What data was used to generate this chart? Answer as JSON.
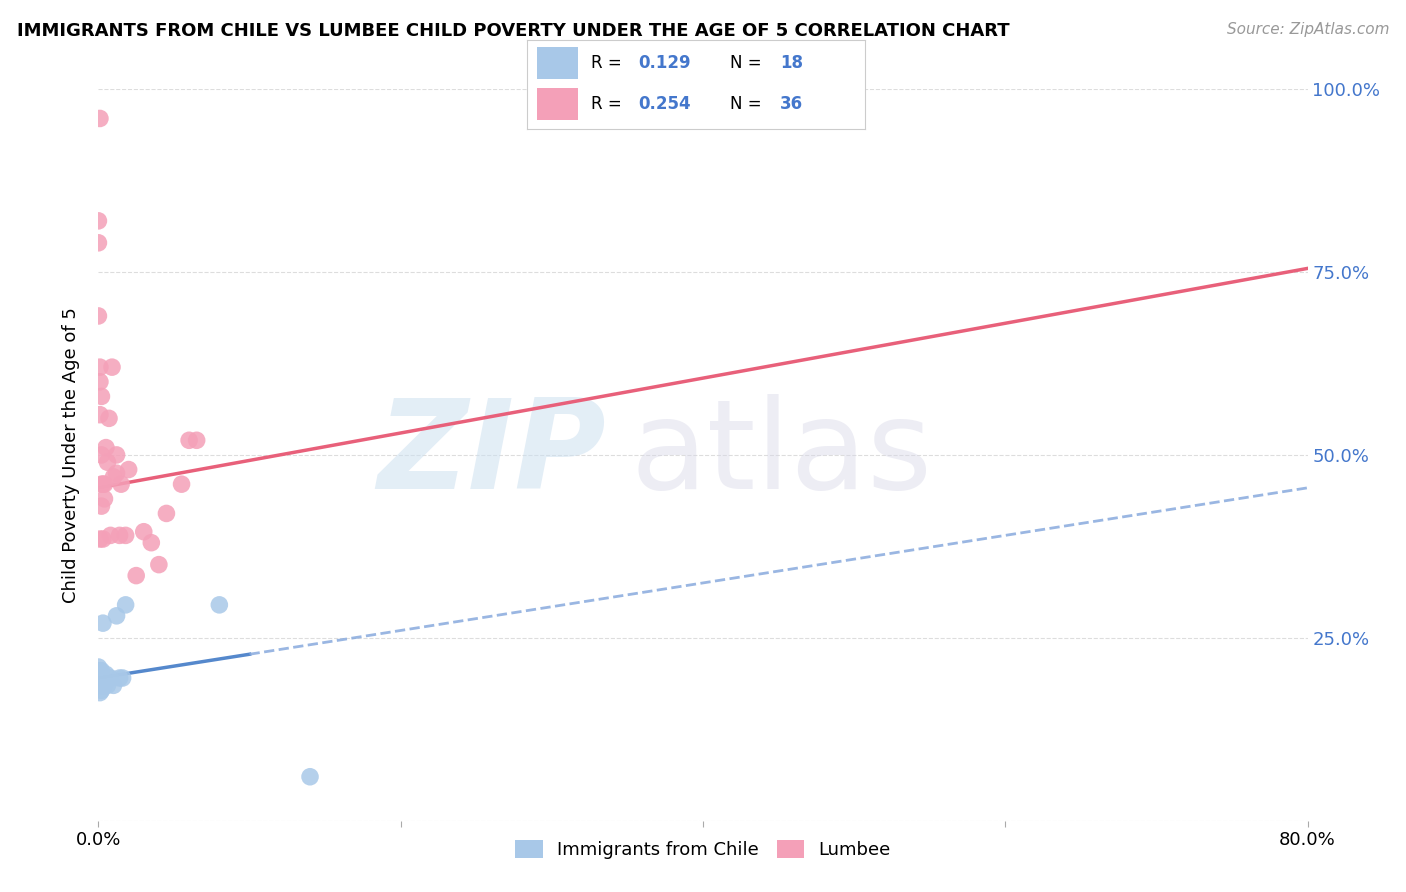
{
  "title": "IMMIGRANTS FROM CHILE VS LUMBEE CHILD POVERTY UNDER THE AGE OF 5 CORRELATION CHART",
  "source": "Source: ZipAtlas.com",
  "ylabel": "Child Poverty Under the Age of 5",
  "xlim": [
    0,
    0.8
  ],
  "ylim": [
    0,
    1.0
  ],
  "color_chile": "#a8c8e8",
  "color_lumbee": "#f4a0b8",
  "color_blue_text": "#4477cc",
  "color_pink_line": "#e8607a",
  "color_blue_line": "#5588cc",
  "color_dashed": "#88aadd",
  "watermark_zip_color": "#cce0f0",
  "watermark_atlas_color": "#d8d8e8",
  "background_color": "#ffffff",
  "grid_color": "#dddddd",
  "chile_x": [
    0.0,
    0.0,
    0.0,
    0.001,
    0.001,
    0.001,
    0.001,
    0.001,
    0.002,
    0.002,
    0.002,
    0.002,
    0.002,
    0.003,
    0.003,
    0.004,
    0.005,
    0.006,
    0.008,
    0.01,
    0.012,
    0.014,
    0.016,
    0.018,
    0.08,
    0.14
  ],
  "chile_y": [
    0.185,
    0.195,
    0.21,
    0.175,
    0.185,
    0.19,
    0.2,
    0.205,
    0.178,
    0.185,
    0.192,
    0.198,
    0.205,
    0.195,
    0.27,
    0.185,
    0.2,
    0.185,
    0.195,
    0.185,
    0.28,
    0.195,
    0.195,
    0.295,
    0.295,
    0.06
  ],
  "lumbee_x": [
    0.0,
    0.0,
    0.0,
    0.001,
    0.001,
    0.001,
    0.001,
    0.001,
    0.002,
    0.002,
    0.002,
    0.002,
    0.003,
    0.003,
    0.004,
    0.004,
    0.005,
    0.006,
    0.007,
    0.008,
    0.009,
    0.01,
    0.012,
    0.012,
    0.014,
    0.015,
    0.018,
    0.02,
    0.025,
    0.03,
    0.035,
    0.04,
    0.045,
    0.055,
    0.06,
    0.065
  ],
  "lumbee_y": [
    0.82,
    0.79,
    0.69,
    0.96,
    0.62,
    0.6,
    0.555,
    0.385,
    0.58,
    0.5,
    0.46,
    0.43,
    0.46,
    0.385,
    0.46,
    0.44,
    0.51,
    0.49,
    0.55,
    0.39,
    0.62,
    0.47,
    0.5,
    0.475,
    0.39,
    0.46,
    0.39,
    0.48,
    0.335,
    0.395,
    0.38,
    0.35,
    0.42,
    0.46,
    0.52,
    0.52
  ],
  "chile_line_x0": 0.0,
  "chile_line_x_solid_end": 0.1,
  "chile_line_x1": 0.8,
  "chile_line_y0": 0.195,
  "chile_line_y1": 0.455,
  "lumbee_line_x0": 0.0,
  "lumbee_line_x1": 0.8,
  "lumbee_line_y0": 0.455,
  "lumbee_line_y1": 0.755
}
